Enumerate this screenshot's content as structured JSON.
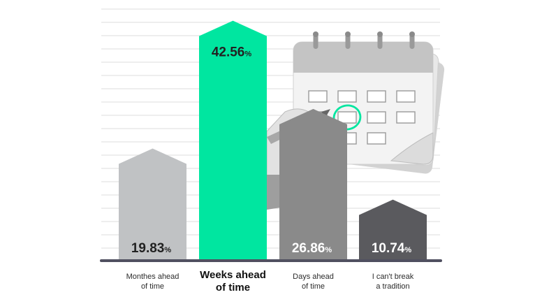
{
  "colors": {
    "background": "#ffffff",
    "gridline": "#e4e4e4",
    "axis": "#505060",
    "bar_1": "#c0c2c4",
    "bar_2": "#00e6a0",
    "bar_3": "#8a8a8a",
    "bar_4": "#5a5a5e",
    "label_dark": "#222222",
    "label_light": "#ffffff"
  },
  "illustration": {
    "name": "calendar-with-hand-and-pen-illustration"
  },
  "chart_data": {
    "type": "bar",
    "title": "",
    "xlabel": "",
    "ylabel": "",
    "ylim": [
      0,
      45
    ],
    "grid": true,
    "legend": "none",
    "categories": [
      "Monthes ahead of time",
      "Weeks ahead of time",
      "Days ahead of time",
      "I can't break a tradition"
    ],
    "category_lines": [
      [
        "Monthes ahead",
        "of time"
      ],
      [
        "Weeks ahead",
        "of time"
      ],
      [
        "Days ahead",
        "of time"
      ],
      [
        "I can't break",
        "a tradition"
      ]
    ],
    "values": [
      19.83,
      42.56,
      26.86,
      10.74
    ],
    "value_labels": [
      "19.83",
      "42.56",
      "26.86",
      "10.74"
    ],
    "unit": "%",
    "highlight_index": 1
  }
}
